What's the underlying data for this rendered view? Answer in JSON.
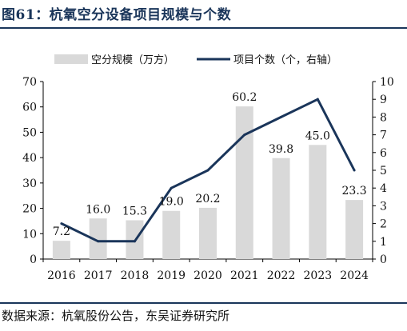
{
  "figure": {
    "title": "图61：杭氧空分设备项目规模与个数",
    "source": "数据来源：杭氧股份公告，东吴证券研究所"
  },
  "colors": {
    "bar": "#d9d9d9",
    "line": "#1a355a",
    "text": "#111111"
  },
  "chart_data": {
    "type": "bar",
    "categories": [
      "2016",
      "2017",
      "2018",
      "2019",
      "2020",
      "2021",
      "2022",
      "2023",
      "2024"
    ],
    "series": [
      {
        "name": "空分规模（万方）",
        "type": "bar",
        "axis": "left",
        "values": [
          7.2,
          16.0,
          15.3,
          19.0,
          20.2,
          60.2,
          39.8,
          45.0,
          23.3
        ],
        "labels": [
          "7.2",
          "16.0",
          "15.3",
          "19.0",
          "20.2",
          "60.2",
          "39.8",
          "45.0",
          "23.3"
        ]
      },
      {
        "name": "项目个数（个，右轴）",
        "type": "line",
        "axis": "right",
        "values": [
          2,
          1,
          1,
          4,
          5,
          7,
          8,
          9,
          5
        ]
      }
    ],
    "y_left": {
      "min": 0,
      "max": 70,
      "ticks": [
        "0",
        "10",
        "20",
        "30",
        "40",
        "50",
        "60",
        "70"
      ]
    },
    "y_right": {
      "min": 0,
      "max": 10,
      "ticks": [
        "0",
        "1",
        "2",
        "3",
        "4",
        "5",
        "6",
        "7",
        "8",
        "9",
        "10"
      ]
    },
    "legend_position": "top",
    "grid": false
  }
}
